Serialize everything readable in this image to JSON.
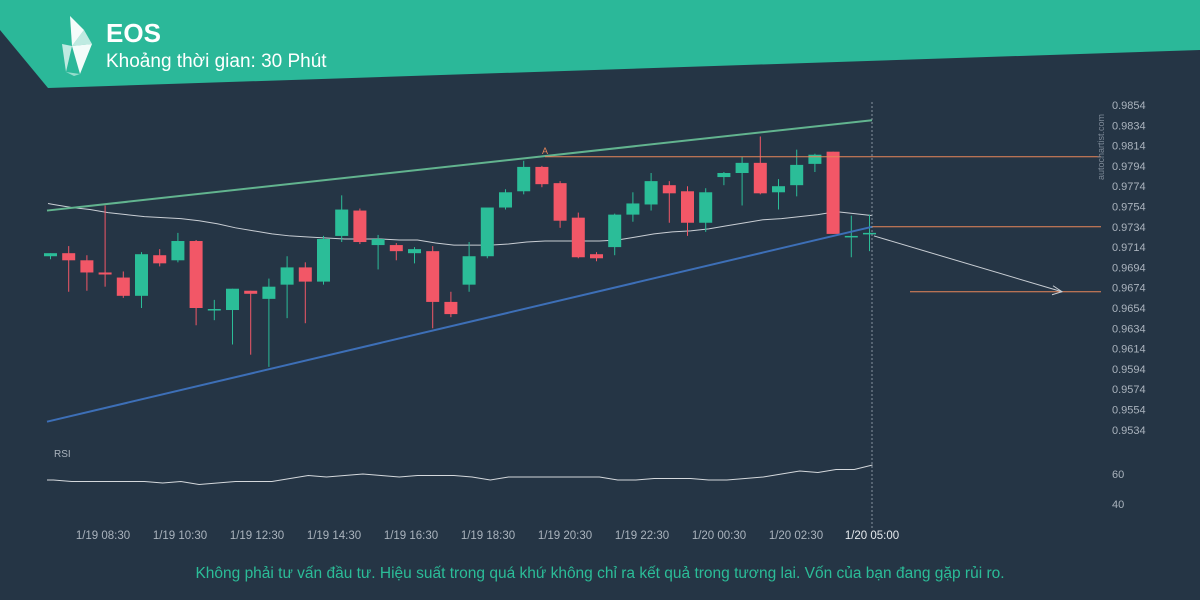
{
  "header": {
    "title": "EOS",
    "subtitle": "Khoảng thời gian: 30 Phút"
  },
  "watermark": "autochartist.com",
  "disclaimer": "Không phải tư vấn đầu tư. Hiệu suất trong quá khứ không chỉ ra kết quả trong tương lai. Vốn của bạn đang gặp rủi ro.",
  "colors": {
    "background": "#253545",
    "banner": "#2bb899",
    "up_candle": "#2bbd98",
    "down_candle": "#f25767",
    "resistance_line": "#62b48f",
    "support_line": "#3d6fb7",
    "level_line": "#e8865a",
    "moving_average": "#c9ced4",
    "rsi_line": "#d4d8dc"
  },
  "chart_data": {
    "type": "candlestick",
    "symbol": "EOS",
    "interval": "30 Phút",
    "x_tick_labels": [
      "1/19 08:30",
      "1/19 10:30",
      "1/19 12:30",
      "1/19 14:30",
      "1/19 16:30",
      "1/19 18:30",
      "1/19 20:30",
      "1/19 22:30",
      "1/20 00:30",
      "1/20 02:30",
      "1/20 05:00"
    ],
    "y_tick_labels": [
      "0.9854",
      "0.9834",
      "0.9814",
      "0.9794",
      "0.9774",
      "0.9754",
      "0.9734",
      "0.9714",
      "0.9694",
      "0.9674",
      "0.9654",
      "0.9634",
      "0.9614",
      "0.9594",
      "0.9574",
      "0.9554",
      "0.9534"
    ],
    "ylim": [
      0.9524,
      0.986
    ],
    "candles": [
      {
        "o": 0.9705,
        "h": 0.9708,
        "l": 0.9702,
        "c": 0.9708
      },
      {
        "o": 0.9708,
        "h": 0.9715,
        "l": 0.967,
        "c": 0.9701
      },
      {
        "o": 0.9701,
        "h": 0.9706,
        "l": 0.9671,
        "c": 0.9689
      },
      {
        "o": 0.9689,
        "h": 0.9755,
        "l": 0.9675,
        "c": 0.9687
      },
      {
        "o": 0.9684,
        "h": 0.969,
        "l": 0.9664,
        "c": 0.9666
      },
      {
        "o": 0.9666,
        "h": 0.9709,
        "l": 0.9654,
        "c": 0.9707
      },
      {
        "o": 0.9706,
        "h": 0.9712,
        "l": 0.9695,
        "c": 0.9698
      },
      {
        "o": 0.9701,
        "h": 0.9728,
        "l": 0.9699,
        "c": 0.972
      },
      {
        "o": 0.972,
        "h": 0.9721,
        "l": 0.9637,
        "c": 0.9654
      },
      {
        "o": 0.9653,
        "h": 0.9662,
        "l": 0.9642,
        "c": 0.9653
      },
      {
        "o": 0.9652,
        "h": 0.9673,
        "l": 0.9618,
        "c": 0.9673
      },
      {
        "o": 0.9671,
        "h": 0.9671,
        "l": 0.9608,
        "c": 0.9668
      },
      {
        "o": 0.9663,
        "h": 0.9683,
        "l": 0.9596,
        "c": 0.9675
      },
      {
        "o": 0.9677,
        "h": 0.9705,
        "l": 0.9644,
        "c": 0.9694
      },
      {
        "o": 0.9694,
        "h": 0.9699,
        "l": 0.9639,
        "c": 0.968
      },
      {
        "o": 0.968,
        "h": 0.9725,
        "l": 0.9677,
        "c": 0.9722
      },
      {
        "o": 0.9725,
        "h": 0.9765,
        "l": 0.9719,
        "c": 0.9751
      },
      {
        "o": 0.975,
        "h": 0.9752,
        "l": 0.9717,
        "c": 0.9719
      },
      {
        "o": 0.9716,
        "h": 0.9726,
        "l": 0.9692,
        "c": 0.9722
      },
      {
        "o": 0.9716,
        "h": 0.9718,
        "l": 0.9701,
        "c": 0.971
      },
      {
        "o": 0.9708,
        "h": 0.9714,
        "l": 0.9698,
        "c": 0.9712
      },
      {
        "o": 0.971,
        "h": 0.9715,
        "l": 0.9634,
        "c": 0.966
      },
      {
        "o": 0.966,
        "h": 0.967,
        "l": 0.9645,
        "c": 0.9648
      },
      {
        "o": 0.9677,
        "h": 0.9719,
        "l": 0.967,
        "c": 0.9705
      },
      {
        "o": 0.9705,
        "h": 0.9752,
        "l": 0.9703,
        "c": 0.9753
      },
      {
        "o": 0.9753,
        "h": 0.9771,
        "l": 0.9751,
        "c": 0.9768
      },
      {
        "o": 0.9769,
        "h": 0.9799,
        "l": 0.9766,
        "c": 0.9793
      },
      {
        "o": 0.9793,
        "h": 0.9794,
        "l": 0.9773,
        "c": 0.9776
      },
      {
        "o": 0.9777,
        "h": 0.9779,
        "l": 0.9733,
        "c": 0.974
      },
      {
        "o": 0.9743,
        "h": 0.9748,
        "l": 0.9703,
        "c": 0.9704
      },
      {
        "o": 0.9707,
        "h": 0.9709,
        "l": 0.97,
        "c": 0.9703
      },
      {
        "o": 0.9714,
        "h": 0.9747,
        "l": 0.9706,
        "c": 0.9746
      },
      {
        "o": 0.9746,
        "h": 0.9768,
        "l": 0.9739,
        "c": 0.9757
      },
      {
        "o": 0.9756,
        "h": 0.9787,
        "l": 0.975,
        "c": 0.9779
      },
      {
        "o": 0.9775,
        "h": 0.9779,
        "l": 0.9738,
        "c": 0.9767
      },
      {
        "o": 0.9769,
        "h": 0.9774,
        "l": 0.9725,
        "c": 0.9738
      },
      {
        "o": 0.9738,
        "h": 0.9772,
        "l": 0.9729,
        "c": 0.9768
      },
      {
        "o": 0.9783,
        "h": 0.9788,
        "l": 0.9775,
        "c": 0.9787
      },
      {
        "o": 0.9787,
        "h": 0.9803,
        "l": 0.9755,
        "c": 0.9797
      },
      {
        "o": 0.9797,
        "h": 0.9823,
        "l": 0.9766,
        "c": 0.9767
      },
      {
        "o": 0.9768,
        "h": 0.9781,
        "l": 0.9751,
        "c": 0.9774
      },
      {
        "o": 0.9775,
        "h": 0.981,
        "l": 0.9764,
        "c": 0.9795
      },
      {
        "o": 0.9796,
        "h": 0.9806,
        "l": 0.9788,
        "c": 0.9805
      },
      {
        "o": 0.9808,
        "h": 0.9808,
        "l": 0.9727,
        "c": 0.9727
      },
      {
        "o": 0.9725,
        "h": 0.9745,
        "l": 0.9704,
        "c": 0.9725
      },
      {
        "o": 0.9728,
        "h": 0.9746,
        "l": 0.971,
        "c": 0.9728
      }
    ],
    "moving_average": [
      0.9756,
      0.9753,
      0.9751,
      0.9748,
      0.9746,
      0.9744,
      0.9743,
      0.9742,
      0.974,
      0.9737,
      0.9733,
      0.973,
      0.9727,
      0.9725,
      0.9724,
      0.9723,
      0.9722,
      0.9722,
      0.9722,
      0.9721,
      0.9721,
      0.9718,
      0.9716,
      0.9716,
      0.9716,
      0.9717,
      0.9719,
      0.972,
      0.972,
      0.972,
      0.972,
      0.9721,
      0.9724,
      0.9727,
      0.9729,
      0.973,
      0.9732,
      0.9735,
      0.9738,
      0.9741,
      0.9742,
      0.9744,
      0.9746,
      0.9749,
      0.9747,
      0.9745
    ],
    "pattern": {
      "name": "Rising wedge / ascending channel",
      "resistance": {
        "from": [
          0,
          0.975
        ],
        "to": [
          43,
          0.9839
        ]
      },
      "support": {
        "from": [
          0,
          0.9542
        ],
        "to": [
          43,
          0.9734
        ]
      },
      "level_A": {
        "label": "A",
        "value": 0.9803,
        "from": 26,
        "to": 55
      },
      "breakout_level": {
        "value": 0.9734
      },
      "target_level": {
        "value": 0.967
      },
      "projection": {
        "from": [
          43,
          0.9727
        ],
        "to": [
          53,
          0.967
        ]
      }
    },
    "rsi": {
      "label": "RSI",
      "tick_labels": [
        "60",
        "40"
      ],
      "ylim": [
        35,
        70
      ],
      "values": [
        56,
        55,
        55,
        55,
        55,
        55,
        54,
        55,
        53,
        54,
        55,
        55,
        55,
        57,
        59,
        58,
        59,
        60,
        59,
        58,
        59,
        59,
        59,
        58,
        56,
        58,
        58,
        58,
        58,
        58,
        58,
        56,
        56,
        57,
        57,
        57,
        56,
        56,
        57,
        58,
        60,
        62,
        61,
        63,
        63,
        66
      ]
    }
  }
}
